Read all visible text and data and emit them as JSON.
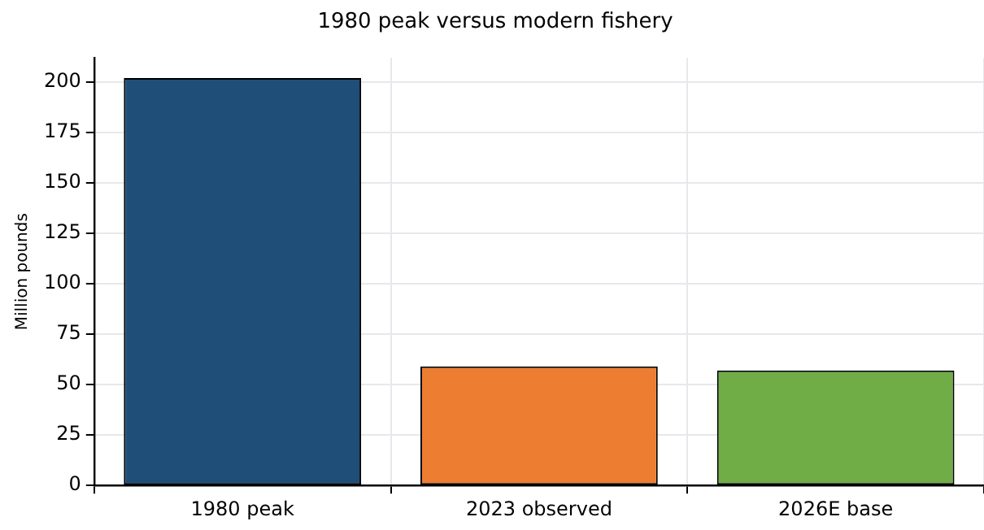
{
  "chart_data": {
    "type": "bar",
    "title": "1980 peak versus modern fishery",
    "ylabel": "Million pounds",
    "categories": [
      "1980 peak",
      "2023 observed",
      "2026E base"
    ],
    "values": [
      202,
      59,
      57
    ],
    "colors": [
      "#1f4e79",
      "#ed7d31",
      "#70ad47"
    ],
    "ylim": [
      0,
      212
    ],
    "yticks": [
      0,
      25,
      50,
      75,
      100,
      125,
      150,
      175,
      200
    ],
    "grid": true,
    "legend": false
  }
}
